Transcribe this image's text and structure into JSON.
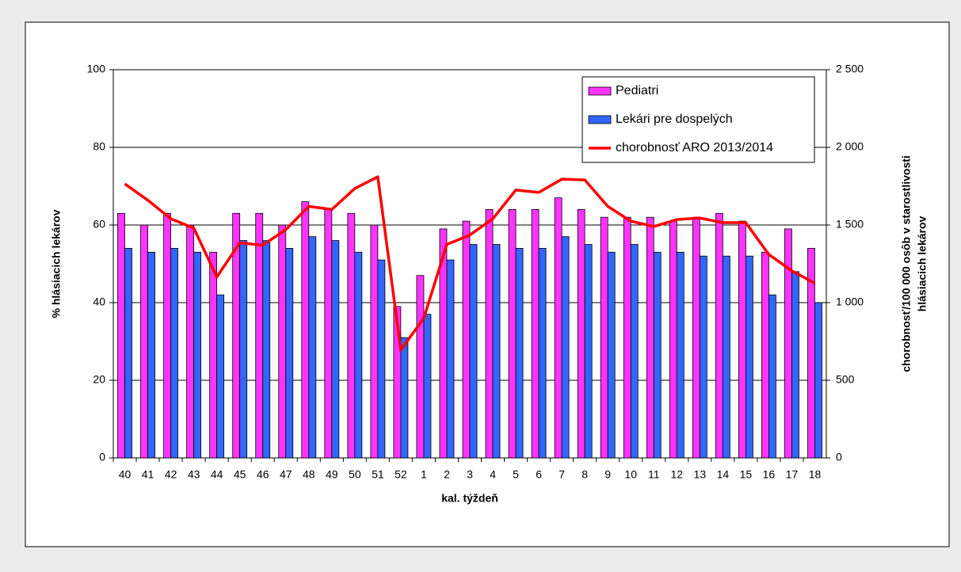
{
  "chart_data": {
    "type": "bar_line",
    "categories": [
      "40",
      "41",
      "42",
      "43",
      "44",
      "45",
      "46",
      "47",
      "48",
      "49",
      "50",
      "51",
      "52",
      "1",
      "2",
      "3",
      "4",
      "5",
      "6",
      "7",
      "8",
      "9",
      "10",
      "11",
      "12",
      "13",
      "14",
      "15",
      "16",
      "17",
      "18"
    ],
    "series": [
      {
        "name": "Pediatri",
        "type": "bar",
        "color": "#ff33ff",
        "values": [
          63,
          60,
          63,
          60,
          53,
          63,
          63,
          60,
          66,
          64,
          63,
          60,
          39,
          47,
          59,
          61,
          64,
          64,
          64,
          67,
          64,
          62,
          62,
          62,
          61,
          62,
          63,
          61,
          53,
          59,
          54
        ]
      },
      {
        "name": "Lekári pre dospelých",
        "type": "bar",
        "color": "#3366ff",
        "values": [
          54,
          53,
          54,
          53,
          42,
          56,
          56,
          54,
          57,
          56,
          53,
          51,
          31,
          37,
          51,
          55,
          55,
          54,
          54,
          57,
          55,
          53,
          55,
          53,
          53,
          52,
          52,
          52,
          42,
          48,
          40
        ]
      },
      {
        "name": "chorobnosť ARO 2013/2014",
        "type": "line",
        "axis": "y2",
        "color": "#ff0000",
        "values": [
          1765,
          1660,
          1540,
          1480,
          1165,
          1385,
          1370,
          1470,
          1620,
          1600,
          1735,
          1810,
          695,
          900,
          1375,
          1435,
          1540,
          1725,
          1710,
          1795,
          1790,
          1620,
          1525,
          1490,
          1535,
          1545,
          1515,
          1515,
          1310,
          1205,
          1125
        ]
      }
    ],
    "x_label": "kal. týždeň",
    "y_label": "% hlásiacich lekárov",
    "y2_label": [
      "chorobnosť/100 000 osôb v starostlivosti",
      "hlásiacich lekárov"
    ],
    "ylim": [
      0,
      100
    ],
    "yticks": [
      0,
      20,
      40,
      60,
      80,
      100
    ],
    "y2lim": [
      0,
      2500
    ],
    "y2ticks": [
      0,
      500,
      {
        "value": 1000,
        "label": "1 000"
      },
      {
        "value": 1500,
        "label": "1 500"
      },
      {
        "value": 2000,
        "label": "2 000"
      },
      {
        "value": 2500,
        "label": "2 500"
      }
    ],
    "grid": true,
    "legend": "upper right"
  }
}
